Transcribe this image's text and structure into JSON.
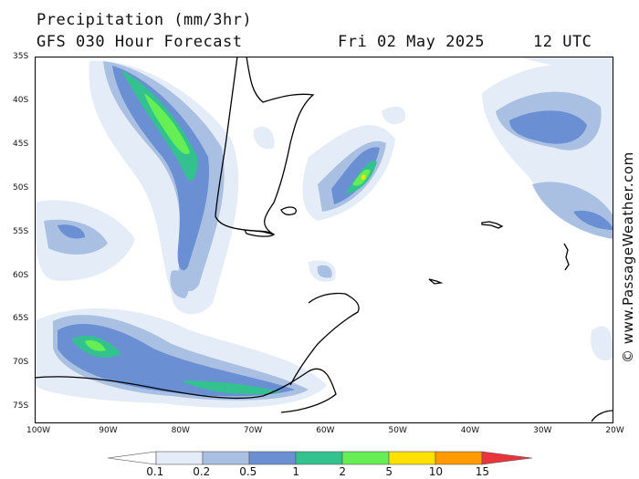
{
  "header": {
    "title": "Precipitation (mm/3hr)",
    "subtitle": "GFS 030 Hour Forecast",
    "date": "Fri 02 May 2025",
    "time": "12 UTC"
  },
  "map": {
    "lat_labels": [
      "35S",
      "40S",
      "45S",
      "50S",
      "55S",
      "60S",
      "65S",
      "70S",
      "75S"
    ],
    "lon_labels": [
      "100W",
      "90W",
      "80W",
      "70W",
      "60W",
      "50W",
      "40W",
      "30W",
      "20W"
    ]
  },
  "legend": {
    "values": [
      "0.1",
      "0.2",
      "0.5",
      "1",
      "2",
      "5",
      "10",
      "15"
    ],
    "colors": [
      "#ffffff",
      "#e4ecf7",
      "#a9c0e2",
      "#6a8fd3",
      "#33c28f",
      "#66ee55",
      "#ffe100",
      "#ff9a00",
      "#e8343c"
    ]
  },
  "credit": "© www.PassageWeather.com"
}
